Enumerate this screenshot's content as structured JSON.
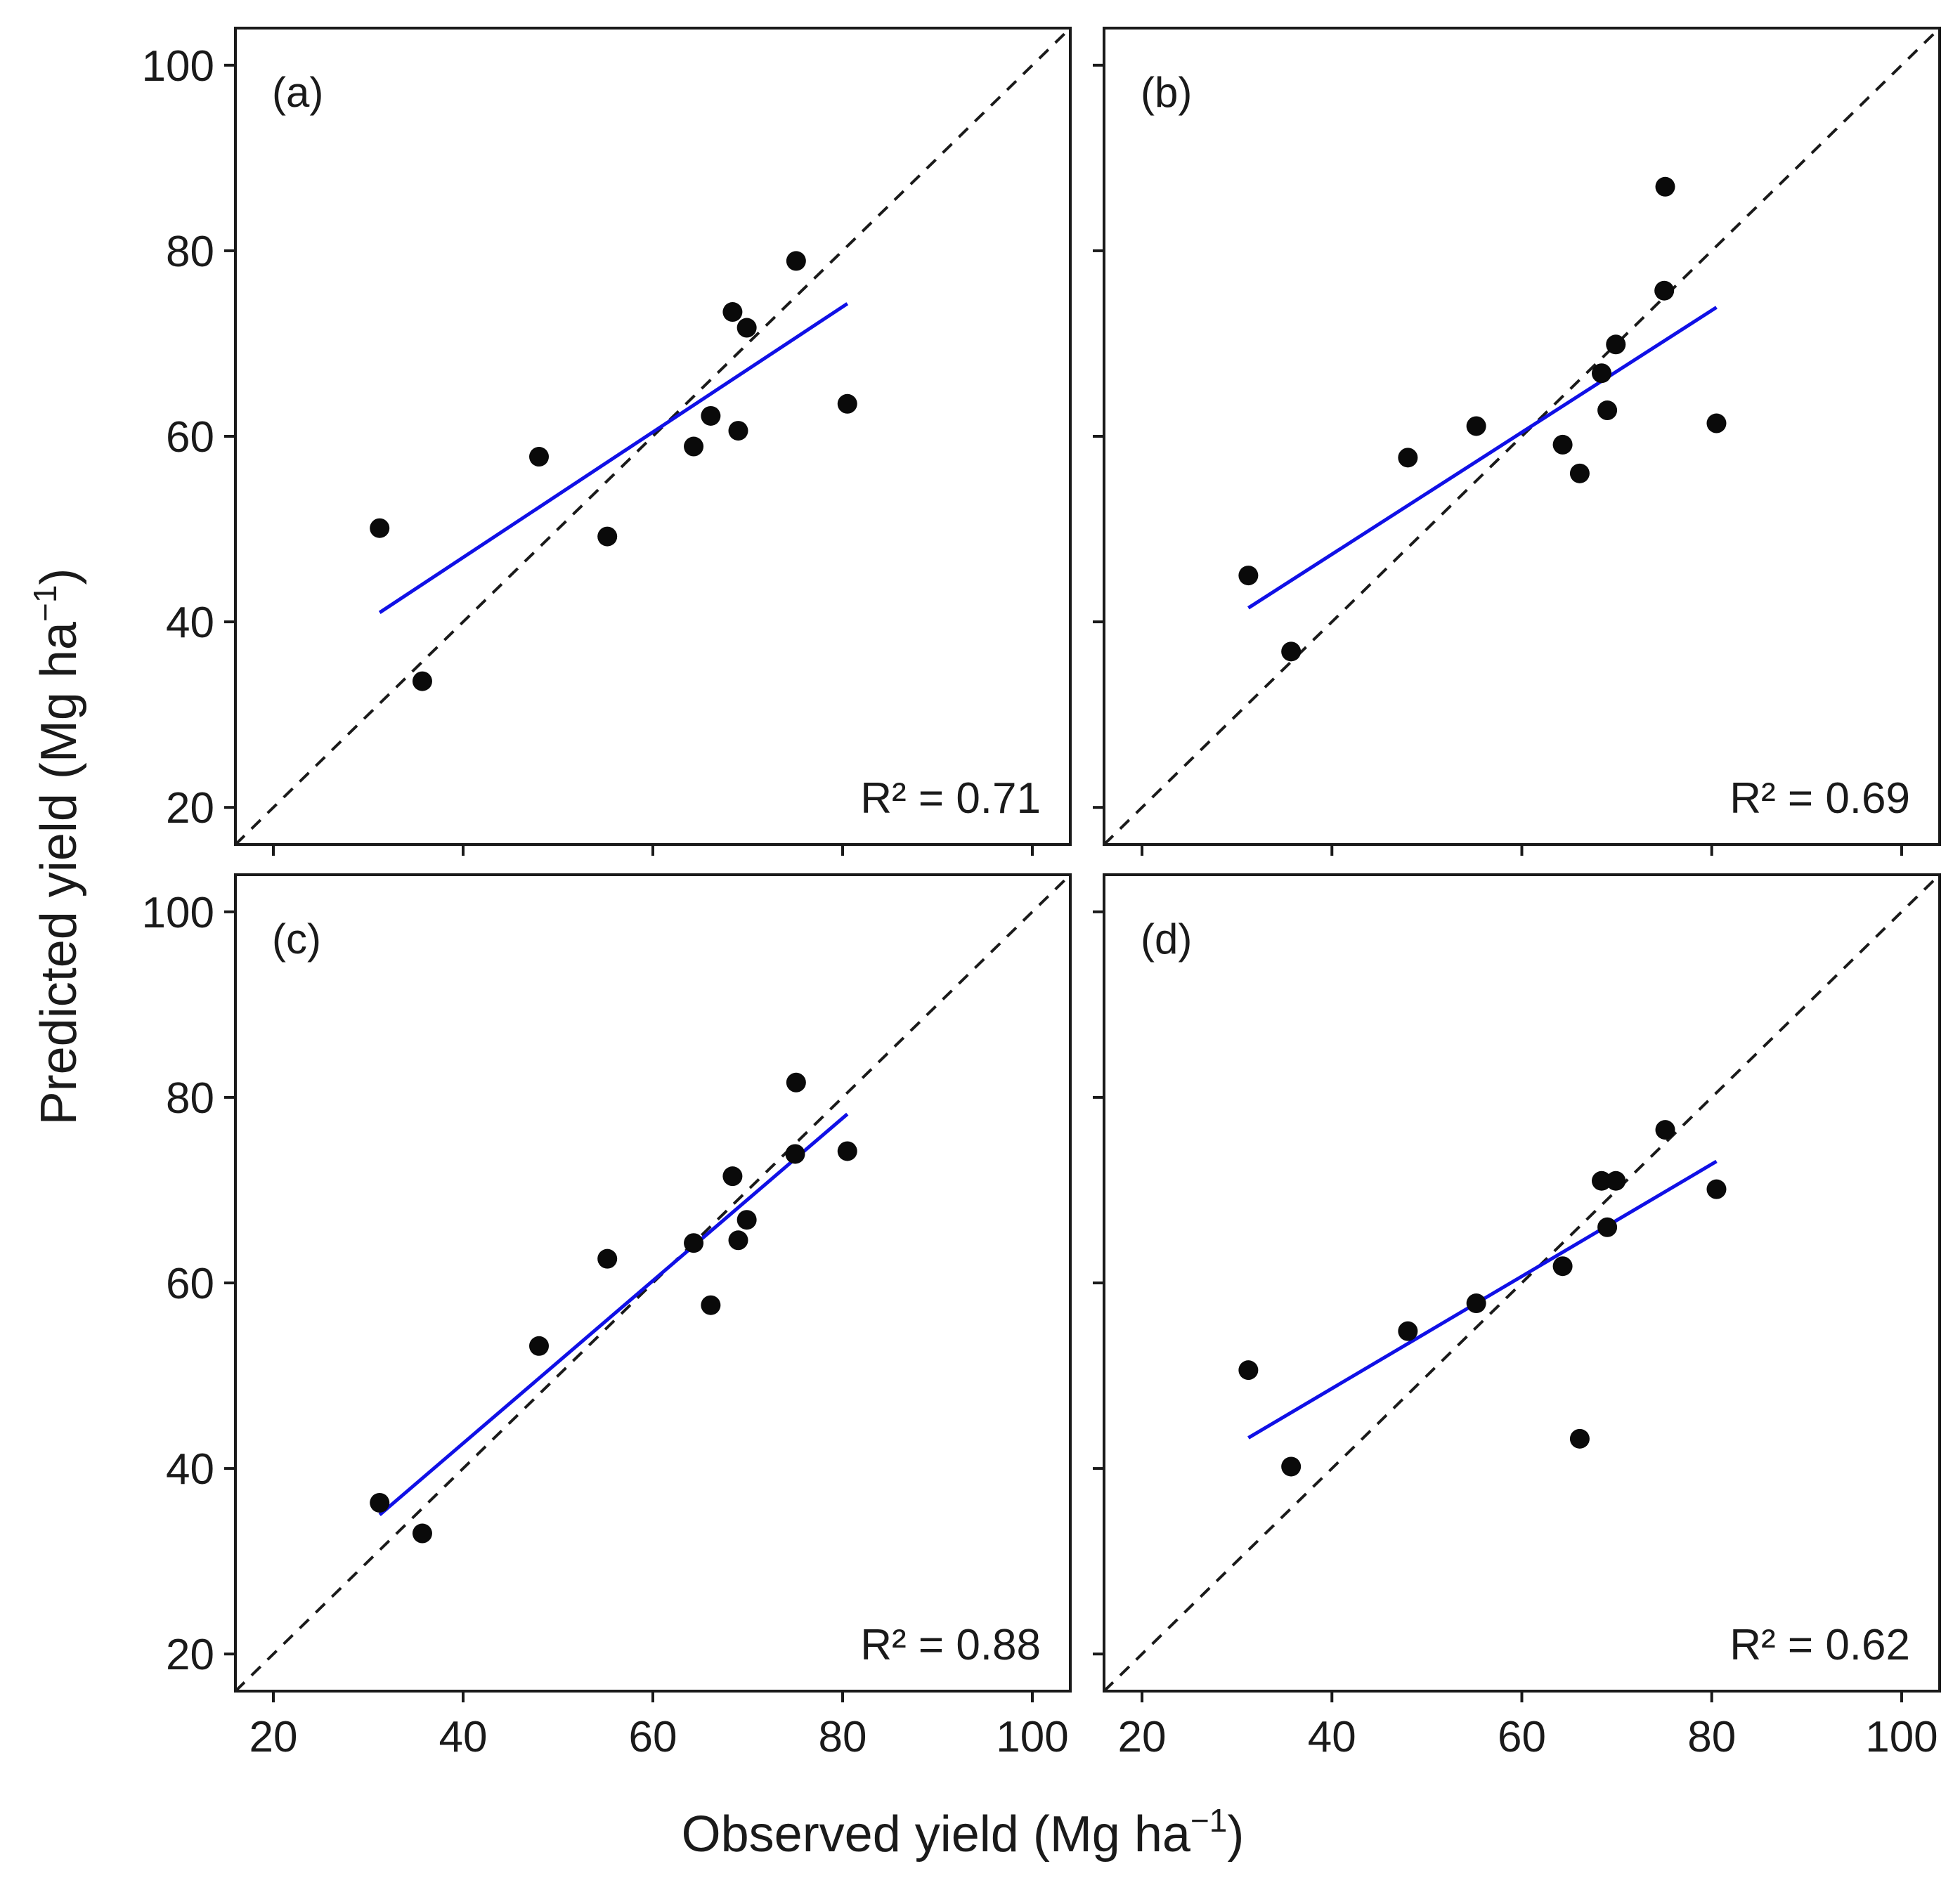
{
  "figure": {
    "xlabel": "Observed yield (Mg ha",
    "ylabel": "Predicted yield (Mg ha",
    "unit_superscript": "−1",
    "closing_paren": ")"
  },
  "chart_data": [
    {
      "type": "scatter",
      "panel_label": "(a)",
      "r2_text": "R² = 0.71",
      "xlim": [
        16,
        104
      ],
      "ylim": [
        16,
        104
      ],
      "x_ticks": [
        20,
        40,
        60,
        80,
        100
      ],
      "y_ticks": [
        20,
        40,
        60,
        80,
        100
      ],
      "show_x_tick_labels": false,
      "show_y_tick_labels": true,
      "identity_line": true,
      "points": [
        {
          "x": 31.2,
          "y": 50.1
        },
        {
          "x": 35.7,
          "y": 33.6
        },
        {
          "x": 48.0,
          "y": 57.8
        },
        {
          "x": 55.2,
          "y": 49.2
        },
        {
          "x": 64.3,
          "y": 58.9
        },
        {
          "x": 66.1,
          "y": 62.2
        },
        {
          "x": 68.4,
          "y": 73.4
        },
        {
          "x": 69.0,
          "y": 60.6
        },
        {
          "x": 69.9,
          "y": 71.7
        },
        {
          "x": 75.1,
          "y": 78.9
        },
        {
          "x": 80.5,
          "y": 63.5
        }
      ],
      "fit_line": {
        "x": [
          31.2,
          80.5
        ],
        "y": [
          41.0,
          74.3
        ]
      }
    },
    {
      "type": "scatter",
      "panel_label": "(b)",
      "r2_text": "R² = 0.69",
      "xlim": [
        16,
        104
      ],
      "ylim": [
        16,
        104
      ],
      "x_ticks": [
        20,
        40,
        60,
        80,
        100
      ],
      "y_ticks": [
        20,
        40,
        60,
        80,
        100
      ],
      "show_x_tick_labels": false,
      "show_y_tick_labels": false,
      "identity_line": true,
      "points": [
        {
          "x": 31.2,
          "y": 45.0
        },
        {
          "x": 35.7,
          "y": 36.8
        },
        {
          "x": 48.0,
          "y": 57.7
        },
        {
          "x": 55.2,
          "y": 61.1
        },
        {
          "x": 64.3,
          "y": 59.1
        },
        {
          "x": 66.1,
          "y": 56.0
        },
        {
          "x": 68.4,
          "y": 66.8
        },
        {
          "x": 69.0,
          "y": 62.8
        },
        {
          "x": 69.9,
          "y": 69.9
        },
        {
          "x": 75.0,
          "y": 75.7
        },
        {
          "x": 75.1,
          "y": 86.9
        },
        {
          "x": 80.5,
          "y": 61.4
        }
      ],
      "fit_line": {
        "x": [
          31.2,
          80.5
        ],
        "y": [
          41.5,
          73.9
        ]
      }
    },
    {
      "type": "scatter",
      "panel_label": "(c)",
      "r2_text": "R² = 0.88",
      "xlim": [
        16,
        104
      ],
      "ylim": [
        16,
        104
      ],
      "x_ticks": [
        20,
        40,
        60,
        80,
        100
      ],
      "y_ticks": [
        20,
        40,
        60,
        80,
        100
      ],
      "show_x_tick_labels": true,
      "show_y_tick_labels": true,
      "identity_line": true,
      "points": [
        {
          "x": 31.2,
          "y": 36.3
        },
        {
          "x": 35.7,
          "y": 33.0
        },
        {
          "x": 48.0,
          "y": 53.2
        },
        {
          "x": 55.2,
          "y": 62.6
        },
        {
          "x": 64.3,
          "y": 64.3
        },
        {
          "x": 66.1,
          "y": 57.6
        },
        {
          "x": 68.4,
          "y": 71.5
        },
        {
          "x": 69.0,
          "y": 64.6
        },
        {
          "x": 69.9,
          "y": 66.8
        },
        {
          "x": 75.0,
          "y": 73.9
        },
        {
          "x": 75.1,
          "y": 81.6
        },
        {
          "x": 80.5,
          "y": 74.2
        }
      ],
      "fit_line": {
        "x": [
          31.2,
          80.5
        ],
        "y": [
          35.0,
          78.2
        ]
      }
    },
    {
      "type": "scatter",
      "panel_label": "(d)",
      "r2_text": "R² = 0.62",
      "xlim": [
        16,
        104
      ],
      "ylim": [
        16,
        104
      ],
      "x_ticks": [
        20,
        40,
        60,
        80,
        100
      ],
      "y_ticks": [
        20,
        40,
        60,
        80,
        100
      ],
      "show_x_tick_labels": true,
      "show_y_tick_labels": false,
      "identity_line": true,
      "points": [
        {
          "x": 31.2,
          "y": 50.6
        },
        {
          "x": 35.7,
          "y": 40.2
        },
        {
          "x": 48.0,
          "y": 54.8
        },
        {
          "x": 55.2,
          "y": 57.8
        },
        {
          "x": 64.3,
          "y": 61.8
        },
        {
          "x": 66.1,
          "y": 43.2
        },
        {
          "x": 68.4,
          "y": 71.0
        },
        {
          "x": 69.0,
          "y": 66.0
        },
        {
          "x": 69.9,
          "y": 71.0
        },
        {
          "x": 75.1,
          "y": 76.5
        },
        {
          "x": 80.5,
          "y": 70.1
        }
      ],
      "fit_line": {
        "x": [
          31.2,
          80.5
        ],
        "y": [
          43.3,
          73.1
        ]
      }
    }
  ]
}
